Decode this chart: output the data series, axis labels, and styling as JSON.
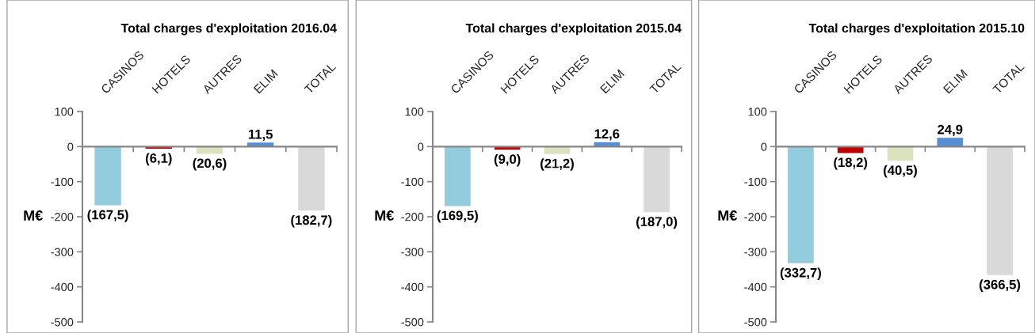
{
  "chart_data": [
    {
      "type": "bar",
      "title": "Total charges d'exploitation 2016.04",
      "ylabel": "M€",
      "categories": [
        "CASINOS",
        "HOTELS",
        "AUTRES",
        "ELIM",
        "TOTAL"
      ],
      "values": [
        -167.5,
        -6.1,
        -20.6,
        11.5,
        -182.7
      ],
      "colors": [
        "#93cddd",
        "#c00000",
        "#d7e4bd",
        "#558ed5",
        "#d9d9d9"
      ],
      "value_labels": [
        "(167,5)",
        "(6,1)",
        "(20,6)",
        "11,5",
        "(182,7)"
      ],
      "ylim": [
        -500,
        100
      ],
      "yticks": [
        -500,
        -400,
        -300,
        -200,
        -100,
        0,
        100
      ]
    },
    {
      "type": "bar",
      "title": "Total charges d'exploitation 2015.04",
      "ylabel": "M€",
      "categories": [
        "CASINOS",
        "HOTELS",
        "AUTRES",
        "ELIM",
        "TOTAL"
      ],
      "values": [
        -169.5,
        -9.0,
        -21.2,
        12.6,
        -187.0
      ],
      "colors": [
        "#93cddd",
        "#c00000",
        "#d7e4bd",
        "#558ed5",
        "#d9d9d9"
      ],
      "value_labels": [
        "(169,5)",
        "(9,0)",
        "(21,2)",
        "12,6",
        "(187,0)"
      ],
      "ylim": [
        -500,
        100
      ],
      "yticks": [
        -500,
        -400,
        -300,
        -200,
        -100,
        0,
        100
      ]
    },
    {
      "type": "bar",
      "title": "Total charges d'exploitation 2015.10",
      "ylabel": "M€",
      "categories": [
        "CASINOS",
        "HOTELS",
        "AUTRES",
        "ELIM",
        "TOTAL"
      ],
      "values": [
        -332.7,
        -18.2,
        -40.5,
        24.9,
        -366.5
      ],
      "colors": [
        "#93cddd",
        "#c00000",
        "#d7e4bd",
        "#558ed5",
        "#d9d9d9"
      ],
      "value_labels": [
        "(332,7)",
        "(18,2)",
        "(40,5)",
        "24,9",
        "(366,5)"
      ],
      "ylim": [
        -500,
        100
      ],
      "yticks": [
        -500,
        -400,
        -300,
        -200,
        -100,
        0,
        100
      ]
    }
  ]
}
